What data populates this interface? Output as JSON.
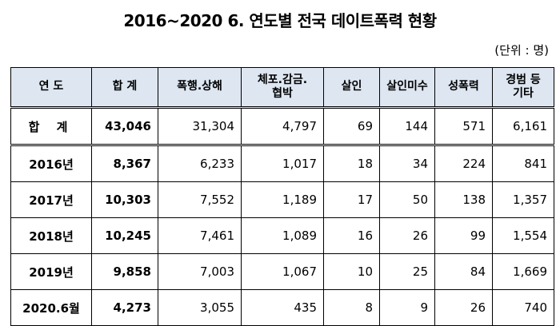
{
  "title": "2016~2020 6. 연도별 전국 데이트폭력 현황",
  "unit": "(단위 : 명)",
  "table": {
    "headers": [
      "연 도",
      "합 계",
      "폭행.상해",
      "체포.감금.\n협박",
      "살인",
      "살인미수",
      "성폭력",
      "경범 등\n기타"
    ],
    "rows": [
      [
        "합 계",
        "43,046",
        "31,304",
        "4,797",
        "69",
        "144",
        "571",
        "6,161"
      ],
      [
        "2016년",
        "8,367",
        "6,233",
        "1,017",
        "18",
        "34",
        "224",
        "841"
      ],
      [
        "2017년",
        "10,303",
        "7,552",
        "1,189",
        "17",
        "50",
        "138",
        "1,357"
      ],
      [
        "2018년",
        "10,245",
        "7,461",
        "1,089",
        "16",
        "26",
        "99",
        "1,554"
      ],
      [
        "2019년",
        "9,858",
        "7,003",
        "1,067",
        "10",
        "25",
        "84",
        "1,669"
      ],
      [
        "2020.6월",
        "4,273",
        "3,055",
        "435",
        "8",
        "9",
        "26",
        "740"
      ]
    ]
  },
  "colors": {
    "header_bg": "#dde6f1",
    "border": "#000000"
  }
}
